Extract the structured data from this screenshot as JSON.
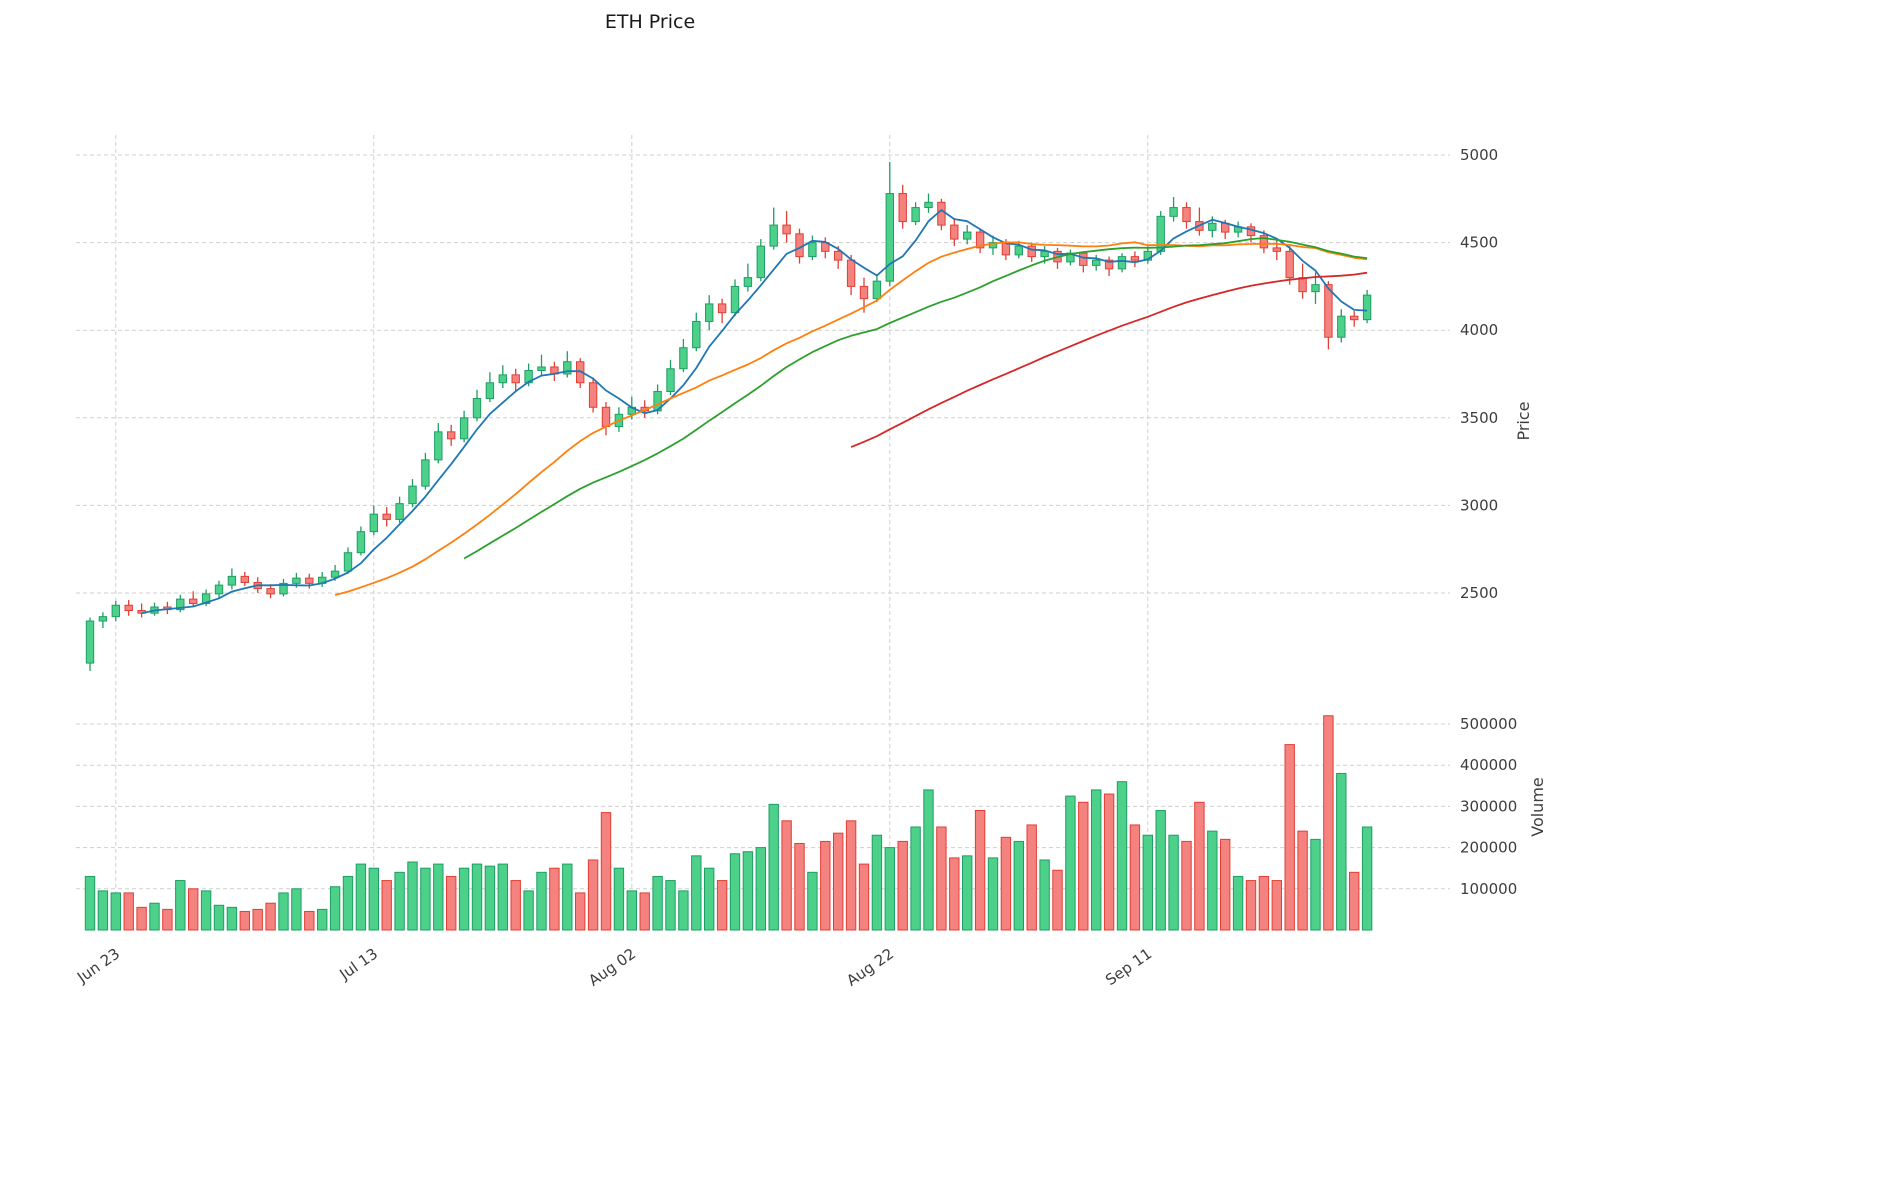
{
  "chart_data": {
    "type": "candlestick",
    "title": "ETH Price",
    "ylabel": "Price",
    "ylabel_lower": "Volume",
    "legend_position": "none",
    "grid": {
      "on": true,
      "style": "dashed",
      "color": "#cfcfcf"
    },
    "colors": {
      "up_fill": "#4cd08a",
      "up_edge": "#1e9e64",
      "down_fill": "#f4827e",
      "down_edge": "#e03f35",
      "tick_text": "#3d3d3d",
      "title_text": "#1a1a1a"
    },
    "ma_series": [
      {
        "name": "MA5",
        "window": 5,
        "color": "#1f77b4"
      },
      {
        "name": "MA20",
        "window": 20,
        "color": "#ff7f0e"
      },
      {
        "name": "MA30",
        "window": 30,
        "color": "#2ca02c"
      },
      {
        "name": "MA60",
        "window": 60,
        "color": "#d62728"
      }
    ],
    "price_axis": {
      "ticks": [
        2500,
        3000,
        3500,
        4000,
        4500,
        5000
      ],
      "side": "right"
    },
    "volume_axis": {
      "ticks": [
        100000,
        200000,
        300000,
        400000,
        500000
      ],
      "side": "right"
    },
    "x_tick_labels": [
      "Jun 23",
      "Jul 13",
      "Aug 02",
      "Aug 22",
      "Sep 11"
    ],
    "x_tick_indices": [
      2,
      22,
      42,
      62,
      82
    ],
    "num_candles": 100,
    "ohlc": [
      [
        2100,
        2360,
        2055,
        2340
      ],
      [
        2340,
        2390,
        2300,
        2365
      ],
      [
        2365,
        2455,
        2340,
        2430
      ],
      [
        2430,
        2460,
        2370,
        2400
      ],
      [
        2400,
        2440,
        2360,
        2385
      ],
      [
        2385,
        2445,
        2370,
        2420
      ],
      [
        2420,
        2450,
        2380,
        2405
      ],
      [
        2405,
        2490,
        2390,
        2465
      ],
      [
        2465,
        2510,
        2420,
        2440
      ],
      [
        2440,
        2520,
        2425,
        2495
      ],
      [
        2495,
        2570,
        2470,
        2545
      ],
      [
        2545,
        2640,
        2520,
        2595
      ],
      [
        2595,
        2620,
        2540,
        2560
      ],
      [
        2560,
        2590,
        2500,
        2525
      ],
      [
        2525,
        2550,
        2470,
        2495
      ],
      [
        2495,
        2580,
        2480,
        2555
      ],
      [
        2555,
        2615,
        2530,
        2585
      ],
      [
        2585,
        2610,
        2525,
        2555
      ],
      [
        2555,
        2620,
        2535,
        2590
      ],
      [
        2590,
        2660,
        2570,
        2625
      ],
      [
        2625,
        2760,
        2610,
        2730
      ],
      [
        2730,
        2880,
        2715,
        2850
      ],
      [
        2850,
        3000,
        2830,
        2950
      ],
      [
        2950,
        2990,
        2880,
        2920
      ],
      [
        2920,
        3050,
        2900,
        3010
      ],
      [
        3010,
        3150,
        2990,
        3110
      ],
      [
        3110,
        3300,
        3090,
        3260
      ],
      [
        3260,
        3470,
        3240,
        3420
      ],
      [
        3420,
        3460,
        3340,
        3380
      ],
      [
        3380,
        3540,
        3360,
        3500
      ],
      [
        3500,
        3660,
        3480,
        3610
      ],
      [
        3610,
        3760,
        3590,
        3700
      ],
      [
        3700,
        3800,
        3670,
        3745
      ],
      [
        3745,
        3780,
        3650,
        3700
      ],
      [
        3700,
        3810,
        3680,
        3770
      ],
      [
        3770,
        3860,
        3740,
        3790
      ],
      [
        3790,
        3820,
        3710,
        3750
      ],
      [
        3750,
        3880,
        3730,
        3820
      ],
      [
        3820,
        3840,
        3670,
        3700
      ],
      [
        3700,
        3730,
        3530,
        3560
      ],
      [
        3560,
        3590,
        3400,
        3450
      ],
      [
        3450,
        3560,
        3420,
        3520
      ],
      [
        3520,
        3620,
        3490,
        3560
      ],
      [
        3560,
        3600,
        3500,
        3540
      ],
      [
        3540,
        3690,
        3520,
        3650
      ],
      [
        3650,
        3830,
        3630,
        3780
      ],
      [
        3780,
        3950,
        3760,
        3900
      ],
      [
        3900,
        4100,
        3880,
        4050
      ],
      [
        4050,
        4200,
        4000,
        4150
      ],
      [
        4150,
        4180,
        4040,
        4100
      ],
      [
        4100,
        4290,
        4080,
        4250
      ],
      [
        4250,
        4380,
        4220,
        4300
      ],
      [
        4300,
        4520,
        4280,
        4480
      ],
      [
        4480,
        4700,
        4460,
        4600
      ],
      [
        4600,
        4680,
        4500,
        4550
      ],
      [
        4550,
        4580,
        4380,
        4420
      ],
      [
        4420,
        4540,
        4400,
        4500
      ],
      [
        4500,
        4530,
        4410,
        4450
      ],
      [
        4450,
        4480,
        4350,
        4400
      ],
      [
        4400,
        4430,
        4200,
        4250
      ],
      [
        4250,
        4300,
        4100,
        4180
      ],
      [
        4180,
        4320,
        4160,
        4280
      ],
      [
        4280,
        4960,
        4250,
        4780
      ],
      [
        4780,
        4830,
        4580,
        4620
      ],
      [
        4620,
        4730,
        4600,
        4700
      ],
      [
        4700,
        4780,
        4670,
        4730
      ],
      [
        4730,
        4750,
        4570,
        4600
      ],
      [
        4600,
        4640,
        4480,
        4520
      ],
      [
        4520,
        4600,
        4490,
        4560
      ],
      [
        4560,
        4580,
        4440,
        4470
      ],
      [
        4470,
        4540,
        4430,
        4500
      ],
      [
        4500,
        4520,
        4400,
        4430
      ],
      [
        4430,
        4510,
        4410,
        4480
      ],
      [
        4480,
        4500,
        4390,
        4420
      ],
      [
        4420,
        4480,
        4380,
        4450
      ],
      [
        4450,
        4470,
        4350,
        4390
      ],
      [
        4390,
        4460,
        4370,
        4440
      ],
      [
        4440,
        4450,
        4330,
        4370
      ],
      [
        4370,
        4430,
        4340,
        4400
      ],
      [
        4400,
        4420,
        4310,
        4350
      ],
      [
        4350,
        4440,
        4330,
        4420
      ],
      [
        4420,
        4450,
        4360,
        4400
      ],
      [
        4400,
        4480,
        4380,
        4450
      ],
      [
        4450,
        4680,
        4430,
        4650
      ],
      [
        4650,
        4760,
        4620,
        4700
      ],
      [
        4700,
        4730,
        4580,
        4620
      ],
      [
        4620,
        4700,
        4540,
        4570
      ],
      [
        4570,
        4650,
        4530,
        4610
      ],
      [
        4610,
        4630,
        4520,
        4560
      ],
      [
        4560,
        4620,
        4530,
        4590
      ],
      [
        4590,
        4610,
        4500,
        4540
      ],
      [
        4540,
        4570,
        4440,
        4470
      ],
      [
        4470,
        4520,
        4400,
        4450
      ],
      [
        4450,
        4480,
        4260,
        4300
      ],
      [
        4300,
        4380,
        4180,
        4220
      ],
      [
        4220,
        4330,
        4150,
        4260
      ],
      [
        4260,
        4280,
        3890,
        3960
      ],
      [
        3960,
        4120,
        3930,
        4080
      ],
      [
        4080,
        4110,
        4020,
        4060
      ],
      [
        4060,
        4230,
        4040,
        4200
      ]
    ],
    "volume": [
      130000,
      95000,
      90000,
      90000,
      55000,
      65000,
      50000,
      120000,
      100000,
      95000,
      60000,
      55000,
      45000,
      50000,
      65000,
      90000,
      100000,
      45000,
      50000,
      105000,
      130000,
      160000,
      150000,
      120000,
      140000,
      165000,
      150000,
      160000,
      130000,
      150000,
      160000,
      155000,
      160000,
      120000,
      95000,
      140000,
      150000,
      160000,
      90000,
      170000,
      285000,
      150000,
      95000,
      90000,
      130000,
      120000,
      95000,
      180000,
      150000,
      120000,
      185000,
      190000,
      200000,
      305000,
      265000,
      210000,
      140000,
      215000,
      235000,
      265000,
      160000,
      230000,
      200000,
      215000,
      250000,
      340000,
      250000,
      175000,
      180000,
      290000,
      175000,
      225000,
      215000,
      255000,
      170000,
      145000,
      325000,
      310000,
      340000,
      330000,
      360000,
      255000,
      230000,
      290000,
      230000,
      215000,
      310000,
      240000,
      220000,
      130000,
      120000,
      130000,
      120000,
      450000,
      240000,
      220000,
      520000,
      380000,
      140000,
      250000
    ]
  }
}
